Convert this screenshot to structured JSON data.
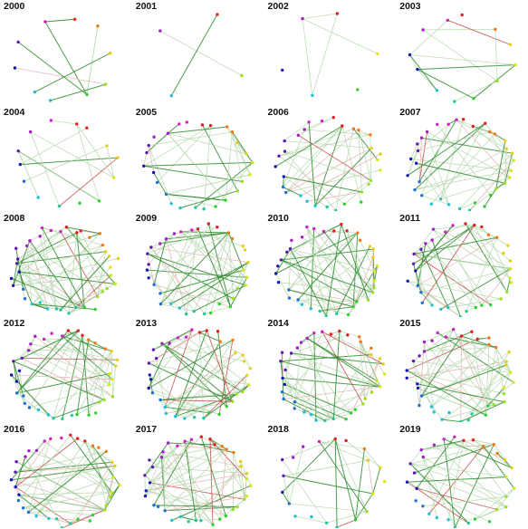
{
  "figure": {
    "years": [
      "2000",
      "2001",
      "2002",
      "2003",
      "2004",
      "2005",
      "2006",
      "2007",
      "2008",
      "2009",
      "2010",
      "2011",
      "2012",
      "2013",
      "2014",
      "2015",
      "2016",
      "2017",
      "2018",
      "2019"
    ],
    "node_colors": [
      "#e0201f",
      "#f07818",
      "#e8d010",
      "#d8e810",
      "#98e020",
      "#30d030",
      "#20c8a0",
      "#20c0d8",
      "#2070d0",
      "#1818b0",
      "#6018b0",
      "#a020c0",
      "#d020c8"
    ],
    "edge_colors": {
      "positive": "#2e8b2e",
      "light": "#b8d8b0",
      "negative": "#c04040",
      "negative_light": "#e8b0b0"
    }
  }
}
